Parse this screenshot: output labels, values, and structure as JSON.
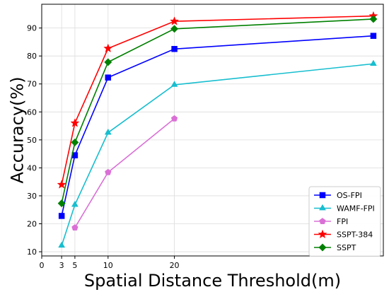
{
  "chart_data": {
    "type": "line",
    "title": "",
    "xlabel": "Spatial Distance Threshold(m)",
    "ylabel": "Accuracy(%)",
    "xlim": [
      0,
      51.5
    ],
    "ylim": [
      8.5,
      98.5
    ],
    "x_ticks": [
      0,
      3,
      5,
      10,
      20
    ],
    "y_ticks": [
      10,
      20,
      30,
      40,
      50,
      60,
      70,
      80,
      90
    ],
    "grid": true,
    "legend_position": "lower-right",
    "series": [
      {
        "name": "OS-FPI",
        "color": "#0000ff",
        "marker": "square",
        "x": [
          3,
          5,
          10,
          20,
          50
        ],
        "y": [
          22.8,
          44.5,
          72.3,
          82.5,
          87.2
        ]
      },
      {
        "name": "WAMF-FPI",
        "color": "#17becf",
        "marker": "triangle",
        "x": [
          3,
          5,
          10,
          20,
          50
        ],
        "y": [
          12.2,
          26.8,
          52.6,
          69.7,
          77.2
        ]
      },
      {
        "name": "FPI",
        "color": "#da70d6",
        "marker": "pentagon",
        "x": [
          5,
          10,
          20
        ],
        "y": [
          18.6,
          38.4,
          57.6
        ]
      },
      {
        "name": "SSPT-384",
        "color": "#ff0000",
        "marker": "star",
        "x": [
          3,
          5,
          10,
          20,
          50
        ],
        "y": [
          34.0,
          56.0,
          82.7,
          92.4,
          94.3
        ]
      },
      {
        "name": "SSPT",
        "color": "#008000",
        "marker": "diamond",
        "x": [
          3,
          5,
          10,
          20,
          50
        ],
        "y": [
          27.3,
          49.1,
          77.8,
          89.7,
          93.2
        ]
      }
    ]
  }
}
